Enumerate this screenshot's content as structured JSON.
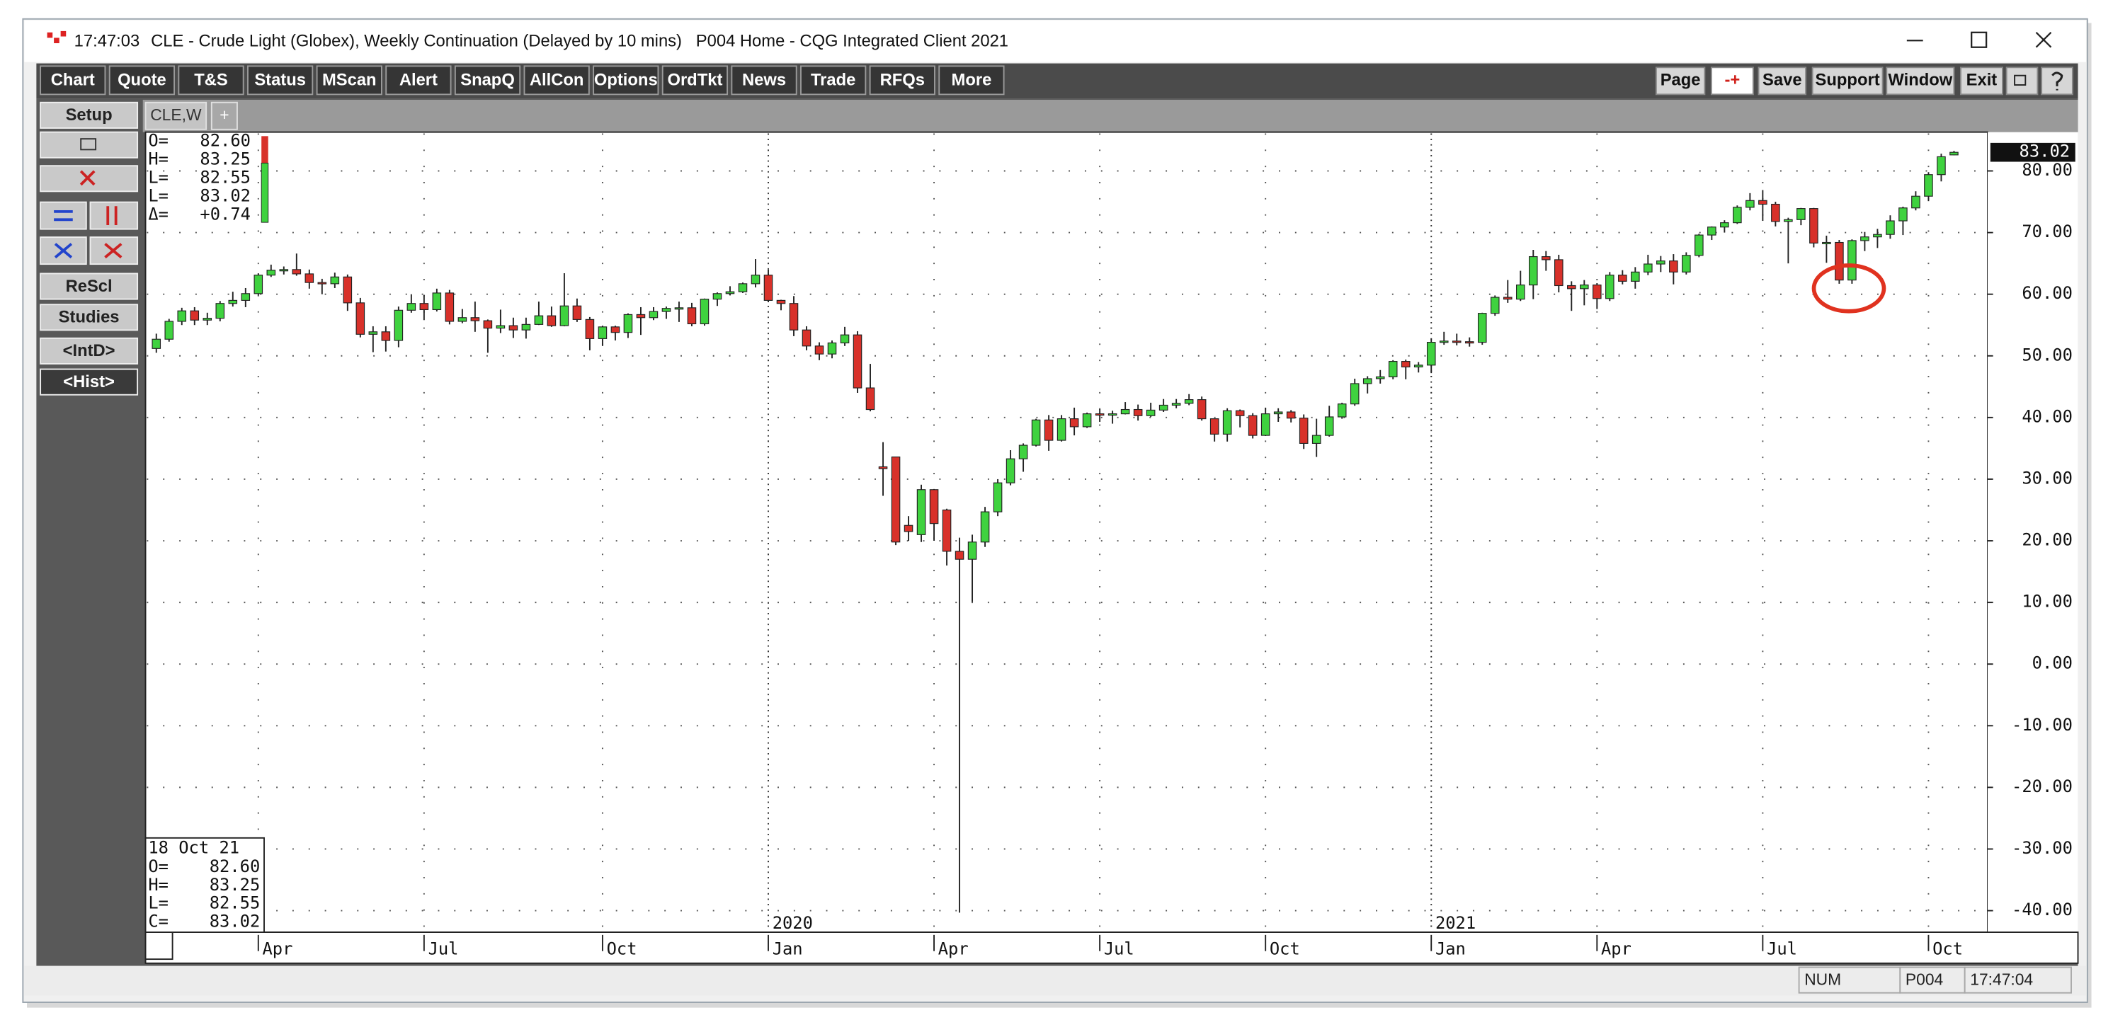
{
  "window": {
    "time": "17:47:03",
    "title": "CLE - Crude Light (Globex), Weekly Continuation (Delayed by 10 mins)   P004 Home - CQG Integrated Client 2021"
  },
  "toolbar": {
    "left": [
      "Chart",
      "Quote",
      "T&S",
      "Status",
      "MScan",
      "Alert",
      "SnapQ",
      "AllCon",
      "Options",
      "OrdTkt",
      "News",
      "Trade",
      "RFQs",
      "More"
    ],
    "right": [
      "Page",
      "-+",
      "Save",
      "Support",
      "Window",
      "Exit"
    ]
  },
  "tabs": [
    "CLE,W",
    "+"
  ],
  "side_buttons": [
    "Setup",
    "ReScl",
    "Studies",
    "<IntD>",
    "<Hist>"
  ],
  "quote_panel": [
    {
      "label": "O=",
      "value": "82.60"
    },
    {
      "label": "H=",
      "value": "83.25"
    },
    {
      "label": "L=",
      "value": "82.55"
    },
    {
      "label": "L=",
      "value": "83.02"
    },
    {
      "label": "Δ=",
      "value": "+0.74"
    }
  ],
  "bar_panel": {
    "date": "18 Oct 21",
    "rows": [
      {
        "label": "O=",
        "value": "82.60"
      },
      {
        "label": "H=",
        "value": "83.25"
      },
      {
        "label": "L=",
        "value": "82.55"
      },
      {
        "label": "C=",
        "value": "83.02"
      }
    ]
  },
  "last_price": "83.02",
  "status_bar": [
    "NUM",
    "P004",
    "17:47:04"
  ],
  "chart_data": {
    "type": "candlestick",
    "up_color": "#3fd23f",
    "down_color": "#d8312a",
    "grid": true,
    "categories": [
      null,
      null,
      null,
      null,
      null,
      null,
      null,
      null,
      "Apr",
      null,
      null,
      null,
      null,
      null,
      null,
      null,
      null,
      null,
      null,
      null,
      null,
      "Jul",
      null,
      null,
      null,
      null,
      null,
      null,
      null,
      null,
      null,
      null,
      null,
      null,
      null,
      "Oct",
      null,
      null,
      null,
      null,
      null,
      null,
      null,
      null,
      null,
      null,
      null,
      null,
      "Jan",
      null,
      null,
      null,
      null,
      null,
      null,
      null,
      null,
      null,
      null,
      null,
      null,
      "Apr",
      null,
      null,
      null,
      null,
      null,
      null,
      null,
      null,
      null,
      null,
      null,
      null,
      "Jul",
      null,
      null,
      null,
      null,
      null,
      null,
      null,
      null,
      null,
      null,
      null,
      null,
      "Oct",
      null,
      null,
      null,
      null,
      null,
      null,
      null,
      null,
      null,
      null,
      null,
      null,
      "Jan",
      null,
      null,
      null,
      null,
      null,
      null,
      null,
      null,
      null,
      null,
      null,
      null,
      "Apr",
      null,
      null,
      null,
      null,
      null,
      null,
      null,
      null,
      null,
      null,
      null,
      null,
      "Jul",
      null,
      null,
      null,
      null,
      null,
      null,
      null,
      null,
      null,
      null,
      null,
      null,
      "Oct",
      null,
      null
    ],
    "year_ticks": [
      {
        "value": 48,
        "label": "2020"
      },
      {
        "value": 100,
        "label": "2021"
      }
    ],
    "open": [
      51.2,
      52.7,
      55.6,
      57.3,
      55.8,
      56.1,
      58.5,
      59.0,
      60.1,
      63.1,
      63.9,
      64.0,
      63.3,
      61.9,
      61.7,
      62.8,
      58.6,
      53.5,
      53.9,
      52.5,
      57.4,
      58.5,
      57.5,
      60.2,
      55.6,
      56.2,
      55.7,
      54.5,
      54.9,
      54.2,
      55.1,
      56.5,
      54.9,
      58.1,
      55.9,
      52.8,
      54.7,
      53.8,
      56.7,
      56.2,
      57.2,
      57.7,
      57.8,
      55.2,
      59.2,
      60.1,
      60.4,
      61.7,
      63.1,
      59.0,
      58.5,
      54.2,
      51.6,
      50.3,
      52.1,
      53.4,
      44.8,
      32.0,
      33.6,
      22.5,
      21.0,
      28.3,
      25.0,
      18.3,
      17.0,
      19.8,
      24.7,
      29.4,
      33.3,
      35.5,
      39.6,
      36.3,
      39.8,
      38.5,
      40.6,
      40.5,
      40.6,
      41.3,
      40.3,
      41.2,
      42.0,
      42.3,
      42.9,
      39.8,
      37.3,
      41.1,
      40.3,
      37.1,
      40.6,
      40.9,
      39.9,
      35.8,
      37.1,
      40.1,
      42.2,
      45.5,
      46.3,
      46.6,
      49.1,
      48.2,
      48.5,
      52.2,
      52.4,
      52.3,
      52.2,
      56.9,
      59.5,
      59.2,
      61.5,
      66.1,
      65.6,
      61.4,
      60.9,
      61.5,
      59.3,
      63.1,
      62.1,
      63.6,
      64.9,
      65.4,
      63.6,
      66.3,
      69.6,
      70.9,
      71.6,
      74.1,
      75.2,
      74.6,
      71.8,
      72.1,
      73.9,
      68.3,
      68.4,
      62.3,
      68.7,
      69.3,
      69.7,
      71.9,
      74.0,
      75.9,
      79.4,
      82.6
    ],
    "high": [
      53.6,
      56.0,
      57.8,
      57.9,
      57.0,
      58.9,
      60.4,
      61.0,
      63.4,
      64.8,
      64.5,
      66.6,
      64.0,
      62.5,
      63.5,
      63.2,
      59.4,
      54.8,
      54.8,
      58.0,
      60.0,
      59.9,
      60.9,
      60.7,
      57.6,
      58.8,
      55.9,
      57.5,
      56.2,
      56.2,
      58.8,
      58.0,
      63.4,
      59.3,
      56.3,
      54.9,
      54.9,
      56.9,
      57.9,
      57.9,
      58.0,
      58.8,
      58.6,
      59.3,
      60.3,
      61.3,
      61.9,
      65.7,
      64.0,
      59.1,
      59.7,
      54.8,
      52.2,
      52.5,
      54.7,
      54.0,
      48.7,
      36.0,
      33.6,
      24.0,
      29.1,
      28.4,
      25.2,
      20.5,
      21.0,
      25.5,
      30.0,
      34.7,
      35.8,
      39.8,
      40.4,
      40.4,
      41.6,
      40.8,
      41.4,
      41.1,
      42.5,
      42.1,
      42.4,
      43.0,
      43.0,
      43.8,
      43.4,
      39.8,
      41.5,
      41.3,
      40.7,
      41.6,
      41.5,
      41.2,
      40.5,
      39.8,
      41.9,
      42.4,
      46.3,
      46.7,
      47.7,
      49.3,
      49.4,
      49.0,
      52.8,
      53.9,
      53.6,
      53.0,
      57.0,
      59.8,
      62.3,
      63.8,
      67.2,
      67.0,
      66.4,
      62.1,
      62.3,
      61.8,
      63.6,
      63.9,
      64.4,
      66.4,
      66.2,
      66.5,
      66.8,
      69.8,
      71.0,
      72.0,
      74.4,
      76.4,
      76.9,
      75.0,
      72.4,
      74.0,
      74.0,
      69.5,
      68.8,
      68.9,
      70.1,
      70.6,
      72.8,
      74.2,
      76.7,
      79.8,
      82.8,
      83.25
    ],
    "low": [
      50.5,
      52.3,
      55.0,
      55.0,
      55.0,
      55.6,
      58.0,
      57.9,
      59.8,
      62.8,
      63.2,
      63.0,
      60.9,
      60.0,
      61.0,
      57.3,
      53.0,
      50.6,
      50.7,
      51.4,
      57.0,
      55.8,
      57.2,
      55.1,
      55.3,
      53.9,
      50.5,
      53.7,
      52.9,
      52.8,
      55.0,
      54.7,
      54.8,
      55.5,
      50.9,
      51.6,
      52.5,
      52.9,
      53.4,
      55.8,
      56.0,
      55.5,
      54.8,
      54.9,
      58.1,
      59.8,
      60.2,
      61.1,
      58.7,
      57.4,
      53.2,
      50.9,
      49.3,
      49.6,
      51.6,
      44.0,
      41.0,
      27.3,
      19.3,
      20.0,
      19.8,
      20.0,
      16.0,
      -40.32,
      10.1,
      19.0,
      24.0,
      29.0,
      31.2,
      35.3,
      34.6,
      36.1,
      37.1,
      38.3,
      39.3,
      39.0,
      40.5,
      39.5,
      40.1,
      40.9,
      41.5,
      42.0,
      39.5,
      36.1,
      36.1,
      38.4,
      36.6,
      37.0,
      39.3,
      39.2,
      34.9,
      33.6,
      36.9,
      39.8,
      41.9,
      43.9,
      45.5,
      46.2,
      46.2,
      47.3,
      47.2,
      51.8,
      51.7,
      51.5,
      51.8,
      56.5,
      58.6,
      58.9,
      59.2,
      63.8,
      60.3,
      57.3,
      58.2,
      57.6,
      58.9,
      61.6,
      60.9,
      63.1,
      63.6,
      61.6,
      63.2,
      66.0,
      68.8,
      70.0,
      71.4,
      73.6,
      71.9,
      71.0,
      65.0,
      71.2,
      67.6,
      65.1,
      61.7,
      61.7,
      67.0,
      67.5,
      69.0,
      69.6,
      73.6,
      75.1,
      78.3,
      82.55
    ],
    "close": [
      52.7,
      55.6,
      57.3,
      55.8,
      56.1,
      58.5,
      59.0,
      60.1,
      63.1,
      63.9,
      64.0,
      63.3,
      61.9,
      61.7,
      62.8,
      58.6,
      53.5,
      53.9,
      52.5,
      57.4,
      58.5,
      57.5,
      60.2,
      55.6,
      56.2,
      55.7,
      54.5,
      54.9,
      54.2,
      55.1,
      56.5,
      54.9,
      58.1,
      55.9,
      52.8,
      54.7,
      53.8,
      56.7,
      56.2,
      57.2,
      57.7,
      57.8,
      55.2,
      59.2,
      60.1,
      60.4,
      61.7,
      63.1,
      59.0,
      58.5,
      54.2,
      51.6,
      50.3,
      52.1,
      53.4,
      44.8,
      41.3,
      31.7,
      19.8,
      21.5,
      28.3,
      22.8,
      18.3,
      17.0,
      19.8,
      24.7,
      29.4,
      33.3,
      35.5,
      39.6,
      36.3,
      39.8,
      38.5,
      40.6,
      40.5,
      40.6,
      41.3,
      40.3,
      41.2,
      42.0,
      42.3,
      42.9,
      39.8,
      37.3,
      41.1,
      40.3,
      37.1,
      40.6,
      40.9,
      39.9,
      35.8,
      37.1,
      40.1,
      42.2,
      45.5,
      46.3,
      46.6,
      49.1,
      48.2,
      48.5,
      52.2,
      52.4,
      52.3,
      52.2,
      56.9,
      59.5,
      59.2,
      61.5,
      66.1,
      65.6,
      61.4,
      60.9,
      61.5,
      59.3,
      63.1,
      62.1,
      63.6,
      64.9,
      65.4,
      63.6,
      66.3,
      69.6,
      70.9,
      71.6,
      74.1,
      75.2,
      74.6,
      71.8,
      72.1,
      73.9,
      68.3,
      68.4,
      62.3,
      68.7,
      69.3,
      69.7,
      71.9,
      74.0,
      75.9,
      79.4,
      82.3,
      83.02
    ],
    "ylim": [
      -43.5,
      86.3
    ],
    "yticks": [
      {
        "value": 80,
        "label": "80.00"
      },
      {
        "value": 70,
        "label": "70.00"
      },
      {
        "value": 60,
        "label": "60.00"
      },
      {
        "value": 50,
        "label": "50.00"
      },
      {
        "value": 40,
        "label": "40.00"
      },
      {
        "value": 30,
        "label": "30.00"
      },
      {
        "value": 20,
        "label": "20.00"
      },
      {
        "value": 10,
        "label": "10.00"
      },
      {
        "value": 0,
        "label": "0.00"
      },
      {
        "value": -10,
        "label": "-10.00"
      },
      {
        "value": -20,
        "label": "-20.00"
      },
      {
        "value": -30,
        "label": "-30.00"
      },
      {
        "value": -40,
        "label": "-40.00"
      }
    ]
  }
}
